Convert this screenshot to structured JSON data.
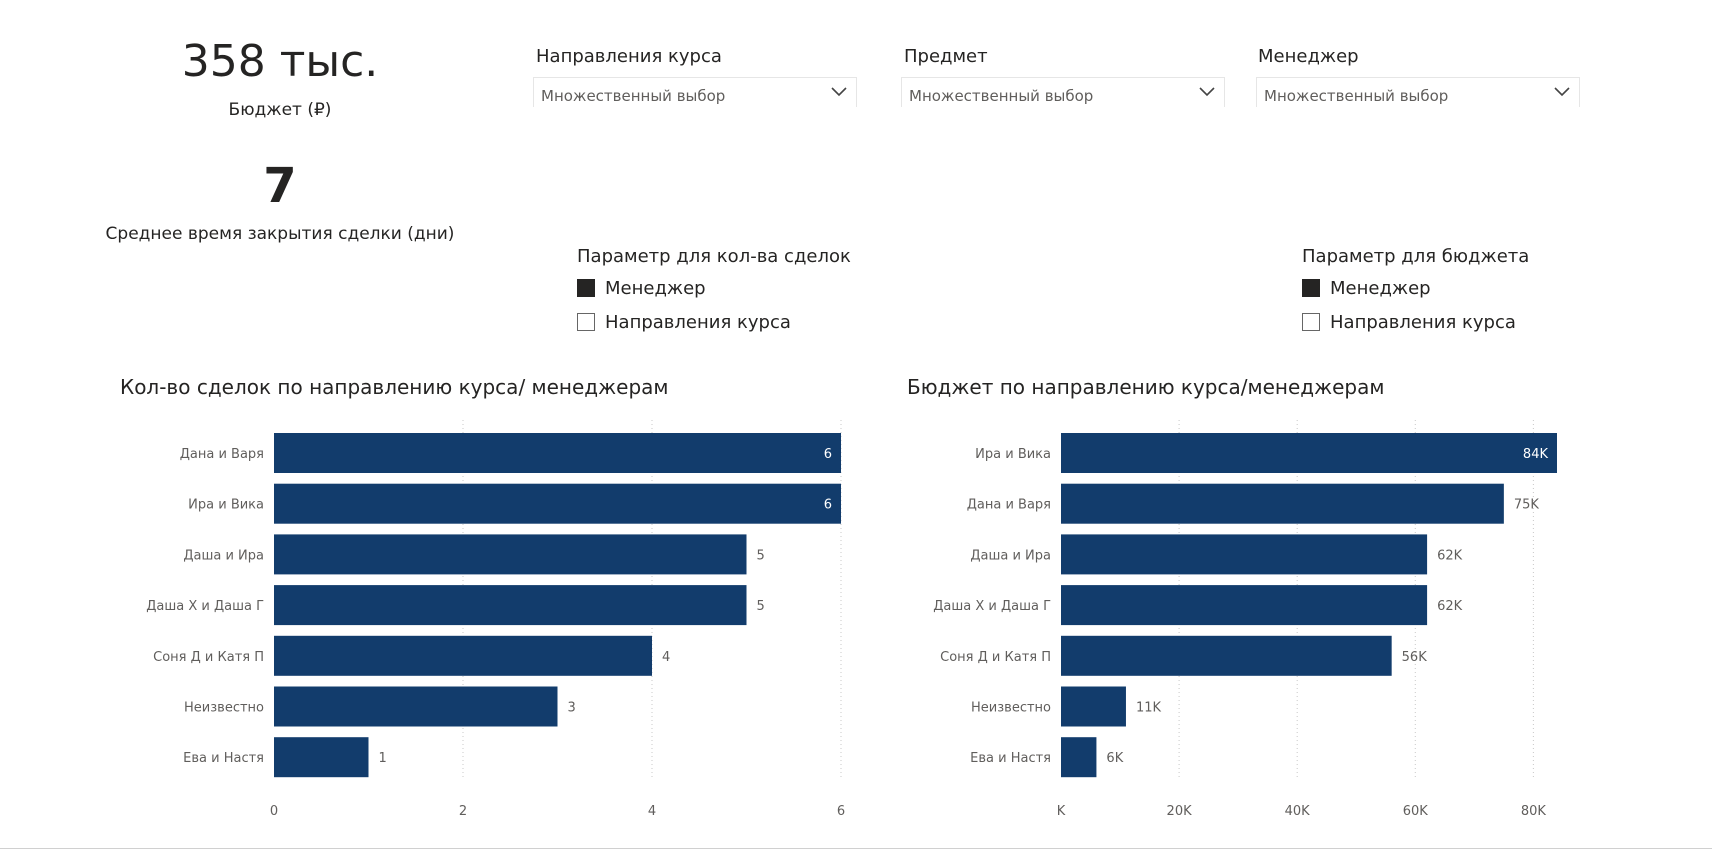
{
  "kpis": {
    "budget": {
      "value": "358 тыс.",
      "label": "Бюджет (₽)"
    },
    "avg_time": {
      "value": "7",
      "label": "Среднее время закрытия сделки (дни)"
    }
  },
  "slicers": [
    {
      "title": "Направления курса",
      "value": "Множественный выбор",
      "icon": "chevron-down-icon"
    },
    {
      "title": "Предмет",
      "value": "Множественный выбор",
      "icon": "chevron-down-icon"
    },
    {
      "title": "Менеджер",
      "value": "Множественный выбор",
      "icon": "chevron-down-icon"
    }
  ],
  "params": {
    "deals": {
      "title": "Параметр для кол-ва сделок",
      "options": [
        {
          "label": "Менеджер",
          "checked": true
        },
        {
          "label": "Направления курса",
          "checked": false
        }
      ]
    },
    "budget": {
      "title": "Параметр для бюджета",
      "options": [
        {
          "label": "Менеджер",
          "checked": true
        },
        {
          "label": "Направления курса",
          "checked": false
        }
      ]
    }
  },
  "colors": {
    "bar": "#123C6C",
    "grid": "#c8c8c8",
    "label_inside": "#ffffff",
    "label_outside": "#605e5c",
    "axis_text": "#605e5c"
  },
  "chart_data": [
    {
      "type": "bar",
      "orientation": "horizontal",
      "title": "Кол-во сделок по направлению курса/ менеджерам",
      "categories": [
        "Дана и Варя",
        "Ира и Вика",
        "Даша и Ира",
        "Даша Х и Даша Г",
        "Соня Д и Катя П",
        "Неизвестно",
        "Ева и Настя"
      ],
      "values": [
        6,
        6,
        5,
        5,
        4,
        3,
        1
      ],
      "data_labels": [
        "6",
        "6",
        "5",
        "5",
        "4",
        "3",
        "1"
      ],
      "xlim": [
        0,
        6
      ],
      "ticks": [
        0,
        2,
        4,
        6
      ],
      "tick_labels": [
        "0",
        "2",
        "4",
        "6"
      ],
      "grid": true
    },
    {
      "type": "bar",
      "orientation": "horizontal",
      "title": "Бюджет по направлению курса/менеджерам",
      "categories": [
        "Ира и Вика",
        "Дана и Варя",
        "Даша и Ира",
        "Даша Х и Даша Г",
        "Соня Д и Катя П",
        "Неизвестно",
        "Ева и Настя"
      ],
      "values": [
        84000,
        75000,
        62000,
        62000,
        56000,
        11000,
        6000
      ],
      "data_labels": [
        "84K",
        "75K",
        "62K",
        "62K",
        "56K",
        "11K",
        "6K"
      ],
      "xlim": [
        0,
        84000
      ],
      "ticks": [
        0,
        20000,
        40000,
        60000,
        80000
      ],
      "tick_labels": [
        "K",
        "20K",
        "40K",
        "60K",
        "80K"
      ],
      "grid": true
    }
  ]
}
